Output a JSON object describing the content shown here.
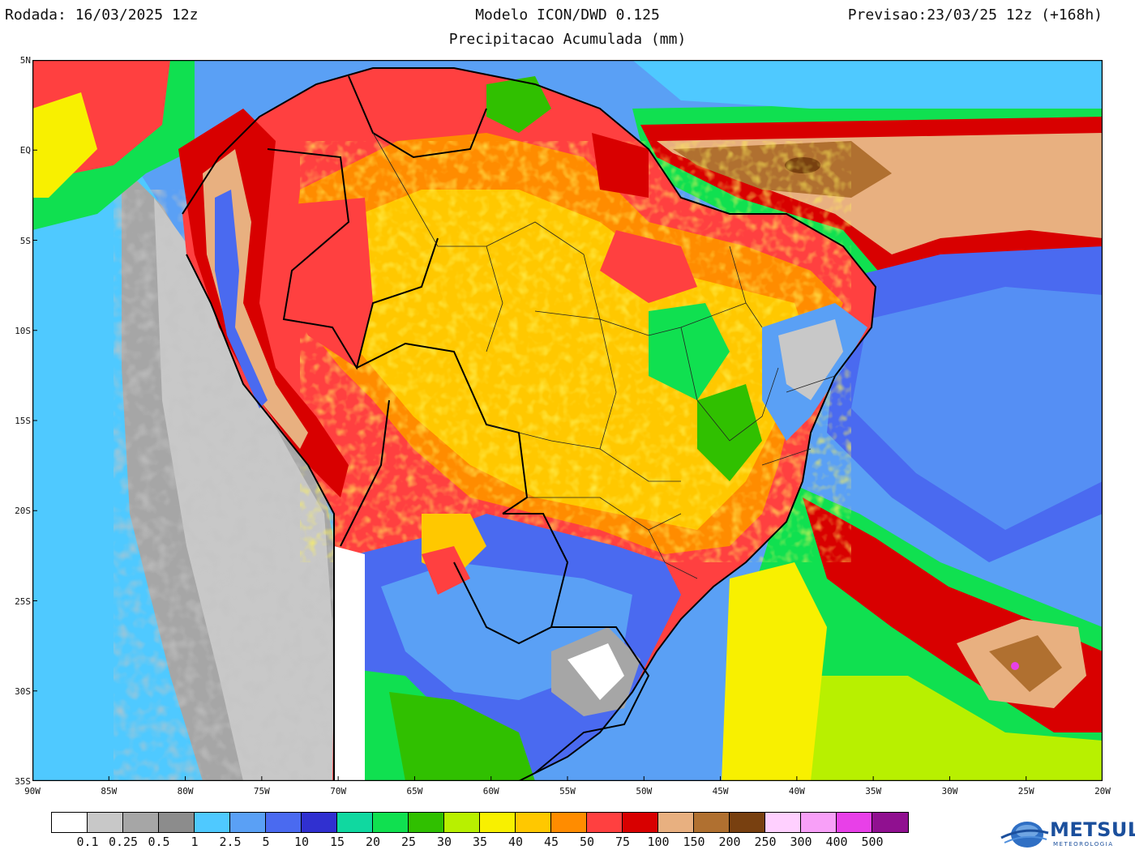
{
  "header": {
    "left": "Rodada: 16/03/2025 12z",
    "center": "Modelo ICON/DWD 0.125",
    "subtitle": "Precipitacao Acumulada (mm)",
    "right": "Previsao:23/03/25 12z (+168h)"
  },
  "map": {
    "lon_range": [
      -90,
      -20
    ],
    "lat_range": [
      -35,
      5
    ],
    "lat_labels": [
      {
        "lat": 5,
        "text": "5N"
      },
      {
        "lat": 0,
        "text": "EQ"
      },
      {
        "lat": -5,
        "text": "5S"
      },
      {
        "lat": -10,
        "text": "10S"
      },
      {
        "lat": -15,
        "text": "15S"
      },
      {
        "lat": -20,
        "text": "20S"
      },
      {
        "lat": -25,
        "text": "25S"
      },
      {
        "lat": -30,
        "text": "30S"
      },
      {
        "lat": -35,
        "text": "35S"
      }
    ],
    "lon_labels": [
      {
        "lon": -90,
        "text": "90W"
      },
      {
        "lon": -85,
        "text": "85W"
      },
      {
        "lon": -80,
        "text": "80W"
      },
      {
        "lon": -75,
        "text": "75W"
      },
      {
        "lon": -70,
        "text": "70W"
      },
      {
        "lon": -65,
        "text": "65W"
      },
      {
        "lon": -60,
        "text": "60W"
      },
      {
        "lon": -55,
        "text": "55W"
      },
      {
        "lon": -50,
        "text": "50W"
      },
      {
        "lon": -45,
        "text": "45W"
      },
      {
        "lon": -40,
        "text": "40W"
      },
      {
        "lon": -35,
        "text": "35W"
      },
      {
        "lon": -30,
        "text": "30W"
      },
      {
        "lon": -25,
        "text": "25W"
      },
      {
        "lon": -20,
        "text": "20W"
      }
    ]
  },
  "colorbar": {
    "colors": [
      "#ffffff",
      "#c8c8c8",
      "#a6a6a6",
      "#8c8c8c",
      "#4fc9ff",
      "#5aa0f5",
      "#4a6af0",
      "#3030d0",
      "#10d8a0",
      "#10e050",
      "#30c000",
      "#b8f000",
      "#f8f000",
      "#ffc800",
      "#ff8c00",
      "#ff4040",
      "#d80000",
      "#e8b080",
      "#b07030",
      "#784010",
      "#ffd0ff",
      "#f8a0f8",
      "#e840e8",
      "#901090"
    ],
    "labels": [
      "0.1",
      "0.25",
      "0.5",
      "1",
      "2.5",
      "5",
      "10",
      "15",
      "20",
      "25",
      "30",
      "35",
      "40",
      "45",
      "50",
      "75",
      "100",
      "150",
      "200",
      "250",
      "300",
      "400",
      "500"
    ]
  },
  "logo": {
    "name": "METSUL",
    "tagline": "METEOROLOGIA"
  }
}
